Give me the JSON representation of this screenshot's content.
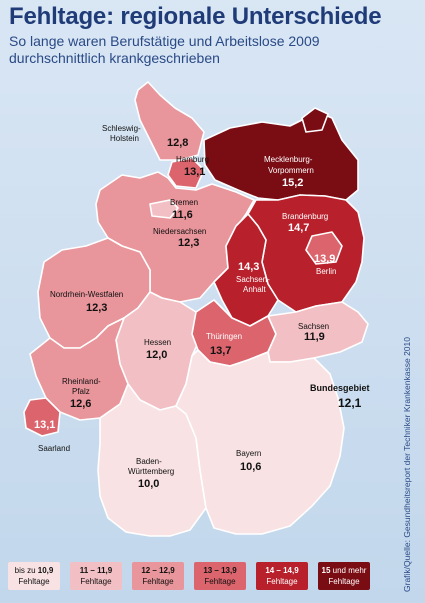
{
  "header": {
    "title": "Fehltage: regionale Unterschiede",
    "subtitle_line1": "So lange waren Berufstätige und Arbeitslose 2009",
    "subtitle_line2": "durchschnittlich krankgeschrieben"
  },
  "source": "Grafik/Quelle: Gesundheitsreport der Techniker Krankenkasse 2010",
  "national": {
    "label": "Bundesgebiet",
    "value": "12,1"
  },
  "colors": {
    "bin1": "#f8e2e4",
    "bin2": "#f2c0c4",
    "bin3": "#e8959b",
    "bin4": "#db646d",
    "bin5": "#b8202c",
    "bin6": "#7a0c14"
  },
  "regions": {
    "schleswig_holstein": {
      "name1": "Schleswig-",
      "name2": "Holstein",
      "value": "12,8"
    },
    "hamburg": {
      "name": "Hamburg",
      "value": "13,1"
    },
    "mecklenburg": {
      "name1": "Mecklenburg-",
      "name2": "Vorpommern",
      "value": "15,2"
    },
    "bremen": {
      "name": "Bremen",
      "value": "11,6"
    },
    "niedersachsen": {
      "name": "Niedersachsen",
      "value": "12,3"
    },
    "brandenburg": {
      "name": "Brandenburg",
      "value": "14,7"
    },
    "berlin": {
      "name": "Berlin",
      "value": "13,9"
    },
    "sachsen_anhalt": {
      "name1": "Sachsen-",
      "name2": "Anhalt",
      "value": "14,3"
    },
    "nrw": {
      "name": "Nordrhein-Westfalen",
      "value": "12,3"
    },
    "hessen": {
      "name": "Hessen",
      "value": "12,0"
    },
    "thueringen": {
      "name": "Thüringen",
      "value": "13,7"
    },
    "sachsen": {
      "name": "Sachsen",
      "value": "11,9"
    },
    "rheinland_pfalz": {
      "name1": "Rheinland-",
      "name2": "Pfalz",
      "value": "12,6"
    },
    "saarland": {
      "name": "Saarland",
      "value": "13,1"
    },
    "bayern": {
      "name": "Bayern",
      "value": "10,6"
    },
    "bawue": {
      "name1": "Baden-",
      "name2": "Württemberg",
      "value": "10,0"
    }
  },
  "legend": [
    {
      "prefix": "bis zu ",
      "range": "10,9",
      "suffix": "",
      "unit": "Fehltage",
      "color": "#f8e2e4"
    },
    {
      "prefix": "",
      "range": "11 – 11,9",
      "suffix": "",
      "unit": "Fehltage",
      "color": "#f2c0c4"
    },
    {
      "prefix": "",
      "range": "12 – 12,9",
      "suffix": "",
      "unit": "Fehltage",
      "color": "#e8959b"
    },
    {
      "prefix": "",
      "range": "13 – 13,9",
      "suffix": "",
      "unit": "Fehltage",
      "color": "#db646d"
    },
    {
      "prefix": "",
      "range": "14 – 14,9",
      "suffix": "",
      "unit": "Fehltage",
      "color": "#b8202c"
    },
    {
      "prefix": "",
      "range": "15",
      "suffix": " und mehr",
      "unit": "Fehltage",
      "color": "#7a0c14"
    }
  ]
}
